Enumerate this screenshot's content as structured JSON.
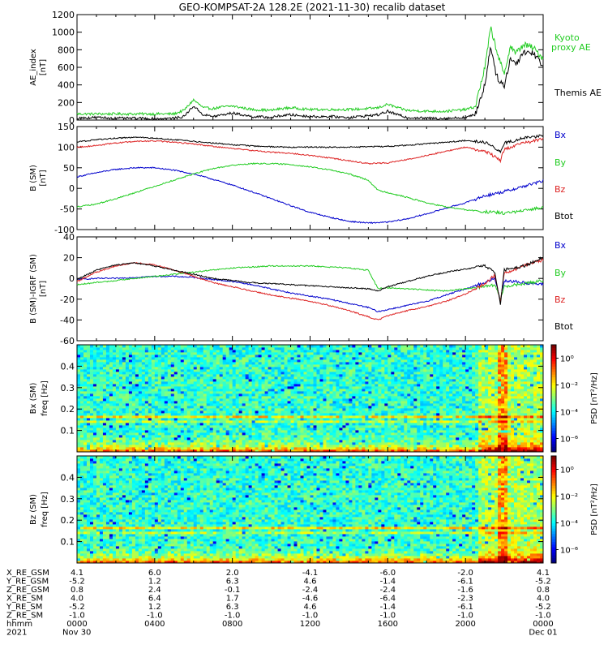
{
  "title": "GEO-KOMPSAT-2A 128.2E (2021-11-30) recalib dataset",
  "colors": {
    "black": "#000000",
    "blue": "#0000cc",
    "green": "#22cc22",
    "red": "#dd2222"
  },
  "chart_data": [
    {
      "type": "line",
      "id": "ae",
      "ylabel": "AE_index [nT]",
      "ylabel_lines": [
        "AE_index",
        "[nT]"
      ],
      "ylim": [
        0,
        1200
      ],
      "yticks": [
        0,
        200,
        400,
        600,
        800,
        1000,
        1200
      ],
      "xlim": [
        0,
        24
      ],
      "legend": [
        "Kyoto proxy AE",
        "Themis AE"
      ],
      "series": [
        {
          "name": "Kyoto proxy AE",
          "color": "#22cc22",
          "x": [
            0,
            1,
            2,
            3,
            4,
            5,
            5.5,
            6,
            6.5,
            7,
            7.5,
            8,
            9,
            10,
            10.5,
            11,
            12,
            13,
            14,
            15,
            15.5,
            16,
            16.5,
            17,
            18,
            19,
            20,
            20.5,
            21,
            21.3,
            21.6,
            22,
            22.3,
            22.6,
            23,
            23.5,
            24
          ],
          "y": [
            70,
            70,
            70,
            70,
            70,
            70,
            110,
            230,
            140,
            130,
            150,
            160,
            120,
            110,
            130,
            140,
            120,
            120,
            120,
            130,
            140,
            180,
            140,
            110,
            100,
            100,
            120,
            150,
            600,
            1050,
            800,
            500,
            850,
            760,
            860,
            820,
            700
          ]
        },
        {
          "name": "Themis AE",
          "color": "#000000",
          "x": [
            0,
            1,
            2,
            3,
            4,
            5,
            5.5,
            6,
            6.5,
            7,
            7.5,
            8,
            9,
            10,
            10.5,
            11,
            12,
            13,
            14,
            15,
            15.5,
            16,
            16.5,
            17,
            18,
            19,
            20,
            20.5,
            21,
            21.3,
            21.6,
            22,
            22.3,
            22.6,
            23,
            23.5,
            24
          ],
          "y": [
            20,
            30,
            20,
            20,
            15,
            20,
            40,
            160,
            60,
            40,
            60,
            80,
            40,
            30,
            50,
            60,
            40,
            40,
            30,
            50,
            60,
            100,
            60,
            30,
            20,
            20,
            30,
            60,
            400,
            850,
            500,
            380,
            700,
            640,
            780,
            760,
            620
          ]
        }
      ]
    },
    {
      "type": "line",
      "id": "bsm",
      "ylabel": "B (SM) [nT]",
      "ylabel_lines": [
        "B (SM)",
        "[nT]"
      ],
      "ylim": [
        -100,
        150
      ],
      "yticks": [
        -100,
        -50,
        0,
        50,
        100,
        150
      ],
      "xlim": [
        0,
        24
      ],
      "legend": [
        "Bx",
        "By",
        "Bz",
        "Btot"
      ],
      "series": [
        {
          "name": "Bx",
          "color": "#0000cc",
          "x": [
            0,
            1,
            2,
            3,
            4,
            5,
            6,
            7,
            8,
            9,
            10,
            11,
            12,
            13,
            14,
            15,
            16,
            17,
            18,
            19,
            20,
            21,
            22,
            23,
            24
          ],
          "y": [
            28,
            38,
            46,
            50,
            50,
            44,
            35,
            22,
            8,
            -8,
            -25,
            -42,
            -58,
            -70,
            -80,
            -84,
            -82,
            -74,
            -62,
            -48,
            -35,
            -18,
            -8,
            5,
            18
          ]
        },
        {
          "name": "By",
          "color": "#22cc22",
          "x": [
            0,
            1,
            2,
            3,
            4,
            5,
            6,
            7,
            8,
            9,
            10,
            11,
            12,
            13,
            14,
            15,
            15.5,
            16,
            17,
            18,
            19,
            20,
            21,
            22,
            23,
            24
          ],
          "y": [
            -45,
            -38,
            -25,
            -10,
            5,
            20,
            35,
            48,
            56,
            60,
            60,
            58,
            52,
            45,
            35,
            20,
            -5,
            -10,
            -22,
            -35,
            -45,
            -52,
            -57,
            -60,
            -55,
            -45
          ]
        },
        {
          "name": "Bz",
          "color": "#dd2222",
          "x": [
            0,
            1,
            2,
            3,
            4,
            5,
            6,
            7,
            8,
            9,
            10,
            11,
            12,
            13,
            14,
            15,
            16,
            17,
            18,
            19,
            20,
            21,
            21.5,
            21.8,
            22,
            23,
            24
          ],
          "y": [
            100,
            104,
            110,
            114,
            115,
            112,
            108,
            102,
            97,
            92,
            88,
            85,
            80,
            74,
            67,
            60,
            62,
            70,
            80,
            90,
            100,
            90,
            78,
            68,
            95,
            110,
            120
          ]
        },
        {
          "name": "Btot",
          "color": "#000000",
          "x": [
            0,
            1,
            2,
            3,
            4,
            5,
            6,
            7,
            8,
            9,
            10,
            11,
            12,
            13,
            14,
            15,
            16,
            17,
            18,
            19,
            20,
            21,
            21.5,
            21.8,
            22,
            23,
            24
          ],
          "y": [
            113,
            118,
            122,
            124,
            122,
            118,
            114,
            110,
            106,
            103,
            101,
            100,
            100,
            100,
            100,
            101,
            102,
            105,
            108,
            112,
            116,
            112,
            100,
            88,
            110,
            122,
            128
          ]
        }
      ]
    },
    {
      "type": "line",
      "id": "bsm-igrf",
      "ylabel": "B (SM)-IGRF (SM) [nT]",
      "ylabel_lines": [
        "B (SM)-IGRF (SM)",
        "[nT]"
      ],
      "ylim": [
        -60,
        40
      ],
      "yticks": [
        -60,
        -40,
        -20,
        0,
        20,
        40
      ],
      "xlim": [
        0,
        24
      ],
      "legend": [
        "Bx",
        "By",
        "Bz",
        "Btot"
      ],
      "series": [
        {
          "name": "Bx",
          "color": "#0000cc",
          "x": [
            0,
            1,
            2,
            3,
            4,
            5,
            6,
            7,
            8,
            9,
            10,
            11,
            12,
            13,
            14,
            15,
            15.5,
            16,
            17,
            18,
            19,
            20,
            21,
            21.5,
            21.8,
            22,
            23,
            24
          ],
          "y": [
            -1,
            0,
            0,
            1,
            2,
            2,
            1,
            -1,
            -3,
            -6,
            -10,
            -14,
            -17,
            -20,
            -24,
            -28,
            -32,
            -30,
            -26,
            -22,
            -16,
            -10,
            -4,
            0,
            -20,
            -2,
            -4,
            -6
          ]
        },
        {
          "name": "By",
          "color": "#22cc22",
          "x": [
            0,
            1,
            2,
            3,
            4,
            5,
            6,
            7,
            8,
            9,
            10,
            11,
            12,
            13,
            14,
            15,
            15.5,
            16,
            17,
            18,
            19,
            20,
            21,
            21.5,
            21.8,
            22,
            23,
            24
          ],
          "y": [
            -6,
            -4,
            -2,
            0,
            2,
            4,
            6,
            8,
            10,
            11,
            12,
            12,
            12,
            11,
            10,
            8,
            -10,
            -9,
            -10,
            -11,
            -12,
            -10,
            -8,
            -6,
            -20,
            -8,
            -5,
            -2
          ]
        },
        {
          "name": "Bz",
          "color": "#dd2222",
          "x": [
            0,
            1,
            2,
            3,
            4,
            5,
            6,
            7,
            8,
            9,
            10,
            11,
            12,
            13,
            14,
            15,
            15.5,
            16,
            17,
            18,
            19,
            20,
            21,
            21.5,
            21.8,
            22,
            23,
            24
          ],
          "y": [
            -3,
            6,
            12,
            15,
            13,
            8,
            2,
            -4,
            -8,
            -12,
            -16,
            -19,
            -22,
            -26,
            -31,
            -37,
            -40,
            -36,
            -31,
            -27,
            -22,
            -15,
            -5,
            3,
            -22,
            5,
            12,
            18
          ]
        },
        {
          "name": "Btot",
          "color": "#000000",
          "x": [
            0,
            1,
            2,
            3,
            4,
            5,
            6,
            7,
            8,
            9,
            10,
            11,
            12,
            13,
            14,
            15,
            15.5,
            16,
            17,
            18,
            19,
            20,
            21,
            21.5,
            21.8,
            22,
            23,
            24
          ],
          "y": [
            -1,
            8,
            13,
            15,
            12,
            8,
            4,
            0,
            -2,
            -4,
            -5,
            -6,
            -7,
            -8,
            -9,
            -10,
            -12,
            -8,
            -3,
            2,
            6,
            9,
            12,
            6,
            -25,
            8,
            12,
            20
          ]
        }
      ]
    },
    {
      "type": "heatmap",
      "id": "bx-spectrogram",
      "ylabel": "Bx (SM) freq [Hz]",
      "ylabel_lines": [
        "Bx (SM)",
        "freq [Hz]"
      ],
      "ylim": [
        0,
        0.5
      ],
      "yticks": [
        0.1,
        0.2,
        0.3,
        0.4
      ],
      "xlim": [
        0,
        24
      ],
      "colorbar_label": "PSD [nT²/Hz]",
      "colorbar_ticks": [
        "10⁰",
        "10⁻²",
        "10⁻⁴",
        "10⁻⁶"
      ],
      "colorbar_tick_values": [
        0,
        -2,
        -4,
        -6
      ],
      "colorbar_range": [
        -7,
        1
      ]
    },
    {
      "type": "heatmap",
      "id": "bz-spectrogram",
      "ylabel": "Bz (SM) freq [Hz]",
      "ylabel_lines": [
        "Bz (SM)",
        "freq [Hz]"
      ],
      "ylim": [
        0,
        0.5
      ],
      "yticks": [
        0.1,
        0.2,
        0.3,
        0.4
      ],
      "xlim": [
        0,
        24
      ],
      "colorbar_label": "PSD [nT²/Hz]",
      "colorbar_ticks": [
        "10⁰",
        "10⁻²",
        "10⁻⁴",
        "10⁻⁶"
      ],
      "colorbar_tick_values": [
        0,
        -2,
        -4,
        -6
      ],
      "colorbar_range": [
        -7,
        1
      ]
    }
  ],
  "orbit_table": {
    "hours": [
      0,
      4,
      8,
      12,
      16,
      20,
      24
    ],
    "rows": [
      {
        "label": "X_RE_GSM",
        "values": [
          "4.1",
          "6.0",
          "2.0",
          "-4.1",
          "-6.0",
          "-2.0",
          "4.1"
        ]
      },
      {
        "label": "Y_RE_GSM",
        "values": [
          "-5.2",
          "1.2",
          "6.3",
          "4.6",
          "-1.4",
          "-6.1",
          "-5.2"
        ]
      },
      {
        "label": "Z_RE_GSM",
        "values": [
          "0.8",
          "2.4",
          "-0.1",
          "-2.4",
          "-2.4",
          "-1.6",
          "0.8"
        ]
      },
      {
        "label": "X_RE_SM",
        "values": [
          "4.0",
          "6.4",
          "1.7",
          "-4.6",
          "-6.4",
          "-2.3",
          "4.0"
        ]
      },
      {
        "label": "Y_RE_SM",
        "values": [
          "-5.2",
          "1.2",
          "6.3",
          "4.6",
          "-1.4",
          "-6.1",
          "-5.2"
        ]
      },
      {
        "label": "Z_RE_SM",
        "values": [
          "-1.0",
          "-1.0",
          "-1.0",
          "-1.0",
          "-1.0",
          "-1.0",
          "-1.0"
        ]
      },
      {
        "label": "hhmm",
        "values": [
          "0000",
          "0400",
          "0800",
          "1200",
          "1600",
          "2000",
          "0000"
        ]
      }
    ],
    "year_label": "2021",
    "start_date": "Nov 30",
    "end_date": "Dec 01"
  }
}
